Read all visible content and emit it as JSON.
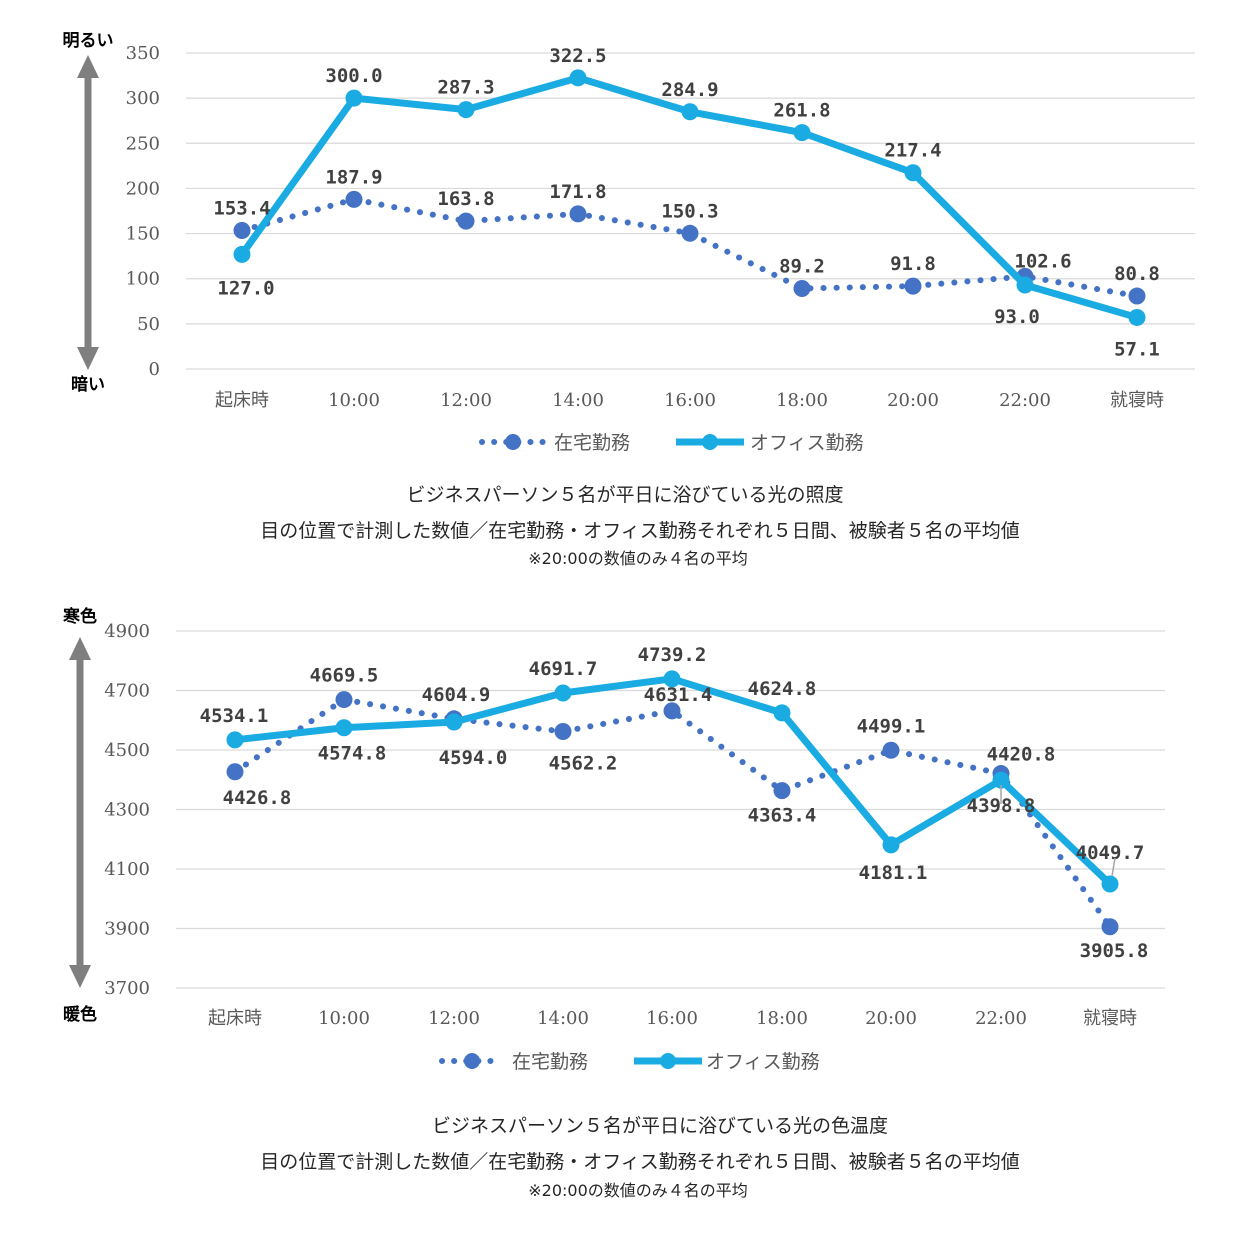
{
  "chart_data": [
    {
      "type": "line",
      "title": "ビジネスパーソン５名が平日に浴びている光の照度",
      "subtitle": "目の位置で計測した数値／在宅勤務・オフィス勤務それぞれ５日間、被験者５名の平均値",
      "note": "※20:00の数値のみ４名の平均",
      "categories": [
        "起床時",
        "10:00",
        "12:00",
        "14:00",
        "16:00",
        "18:00",
        "20:00",
        "22:00",
        "就寝時"
      ],
      "series": [
        {
          "name": "在宅勤務",
          "values": [
            153.4,
            187.9,
            163.8,
            171.8,
            150.3,
            89.2,
            91.8,
            102.6,
            80.8
          ],
          "labels": [
            "153.4",
            "187.9",
            "163.8",
            "171.8",
            "150.3",
            "89.2",
            "91.8",
            "102.6",
            "80.8"
          ],
          "style": "dotted",
          "color": "#4472C4"
        },
        {
          "name": "オフィス勤務",
          "values": [
            127.0,
            300.0,
            287.3,
            322.5,
            284.9,
            261.8,
            217.4,
            93.0,
            57.1
          ],
          "labels": [
            "127.0",
            "300.0",
            "287.3",
            "322.5",
            "284.9",
            "261.8",
            "217.4",
            "93.0",
            "57.1"
          ],
          "style": "solid",
          "color": "#1AABE3"
        }
      ],
      "ylim": [
        0,
        350
      ],
      "yticks": [
        "0",
        "50",
        "100",
        "150",
        "200",
        "250",
        "300",
        "350"
      ],
      "ytop_label": "明るい",
      "ybottom_label": "暗い",
      "legend": "bottom"
    },
    {
      "type": "line",
      "title": "ビジネスパーソン５名が平日に浴びている光の色温度",
      "subtitle": "目の位置で計測した数値／在宅勤務・オフィス勤務それぞれ５日間、被験者５名の平均値",
      "note": "※20:00の数値のみ４名の平均",
      "categories": [
        "起床時",
        "10:00",
        "12:00",
        "14:00",
        "16:00",
        "18:00",
        "20:00",
        "22:00",
        "就寝時"
      ],
      "series": [
        {
          "name": "在宅勤務",
          "values": [
            4426.8,
            4669.5,
            4604.9,
            4562.2,
            4631.4,
            4363.4,
            4499.1,
            4420.8,
            3905.8
          ],
          "labels": [
            "4426.8",
            "4669.5",
            "4604.9",
            "4562.2",
            "4631.4",
            "4363.4",
            "4499.1",
            "4420.8",
            "3905.8"
          ],
          "style": "dotted",
          "color": "#4472C4"
        },
        {
          "name": "オフィス勤務",
          "values": [
            4534.1,
            4574.8,
            4594.0,
            4691.7,
            4739.2,
            4624.8,
            4181.1,
            4398.8,
            4049.7
          ],
          "labels": [
            "4534.1",
            "4574.8",
            "4594.0",
            "4691.7",
            "4739.2",
            "4624.8",
            "4181.1",
            "4398.8",
            "4049.7"
          ],
          "style": "solid",
          "color": "#1AABE3"
        }
      ],
      "ylim": [
        3700,
        4900
      ],
      "yticks": [
        "3700",
        "3900",
        "4100",
        "4300",
        "4500",
        "4700",
        "4900"
      ],
      "ytop_label": "寒色",
      "ybottom_label": "暖色",
      "legend": "bottom"
    }
  ]
}
